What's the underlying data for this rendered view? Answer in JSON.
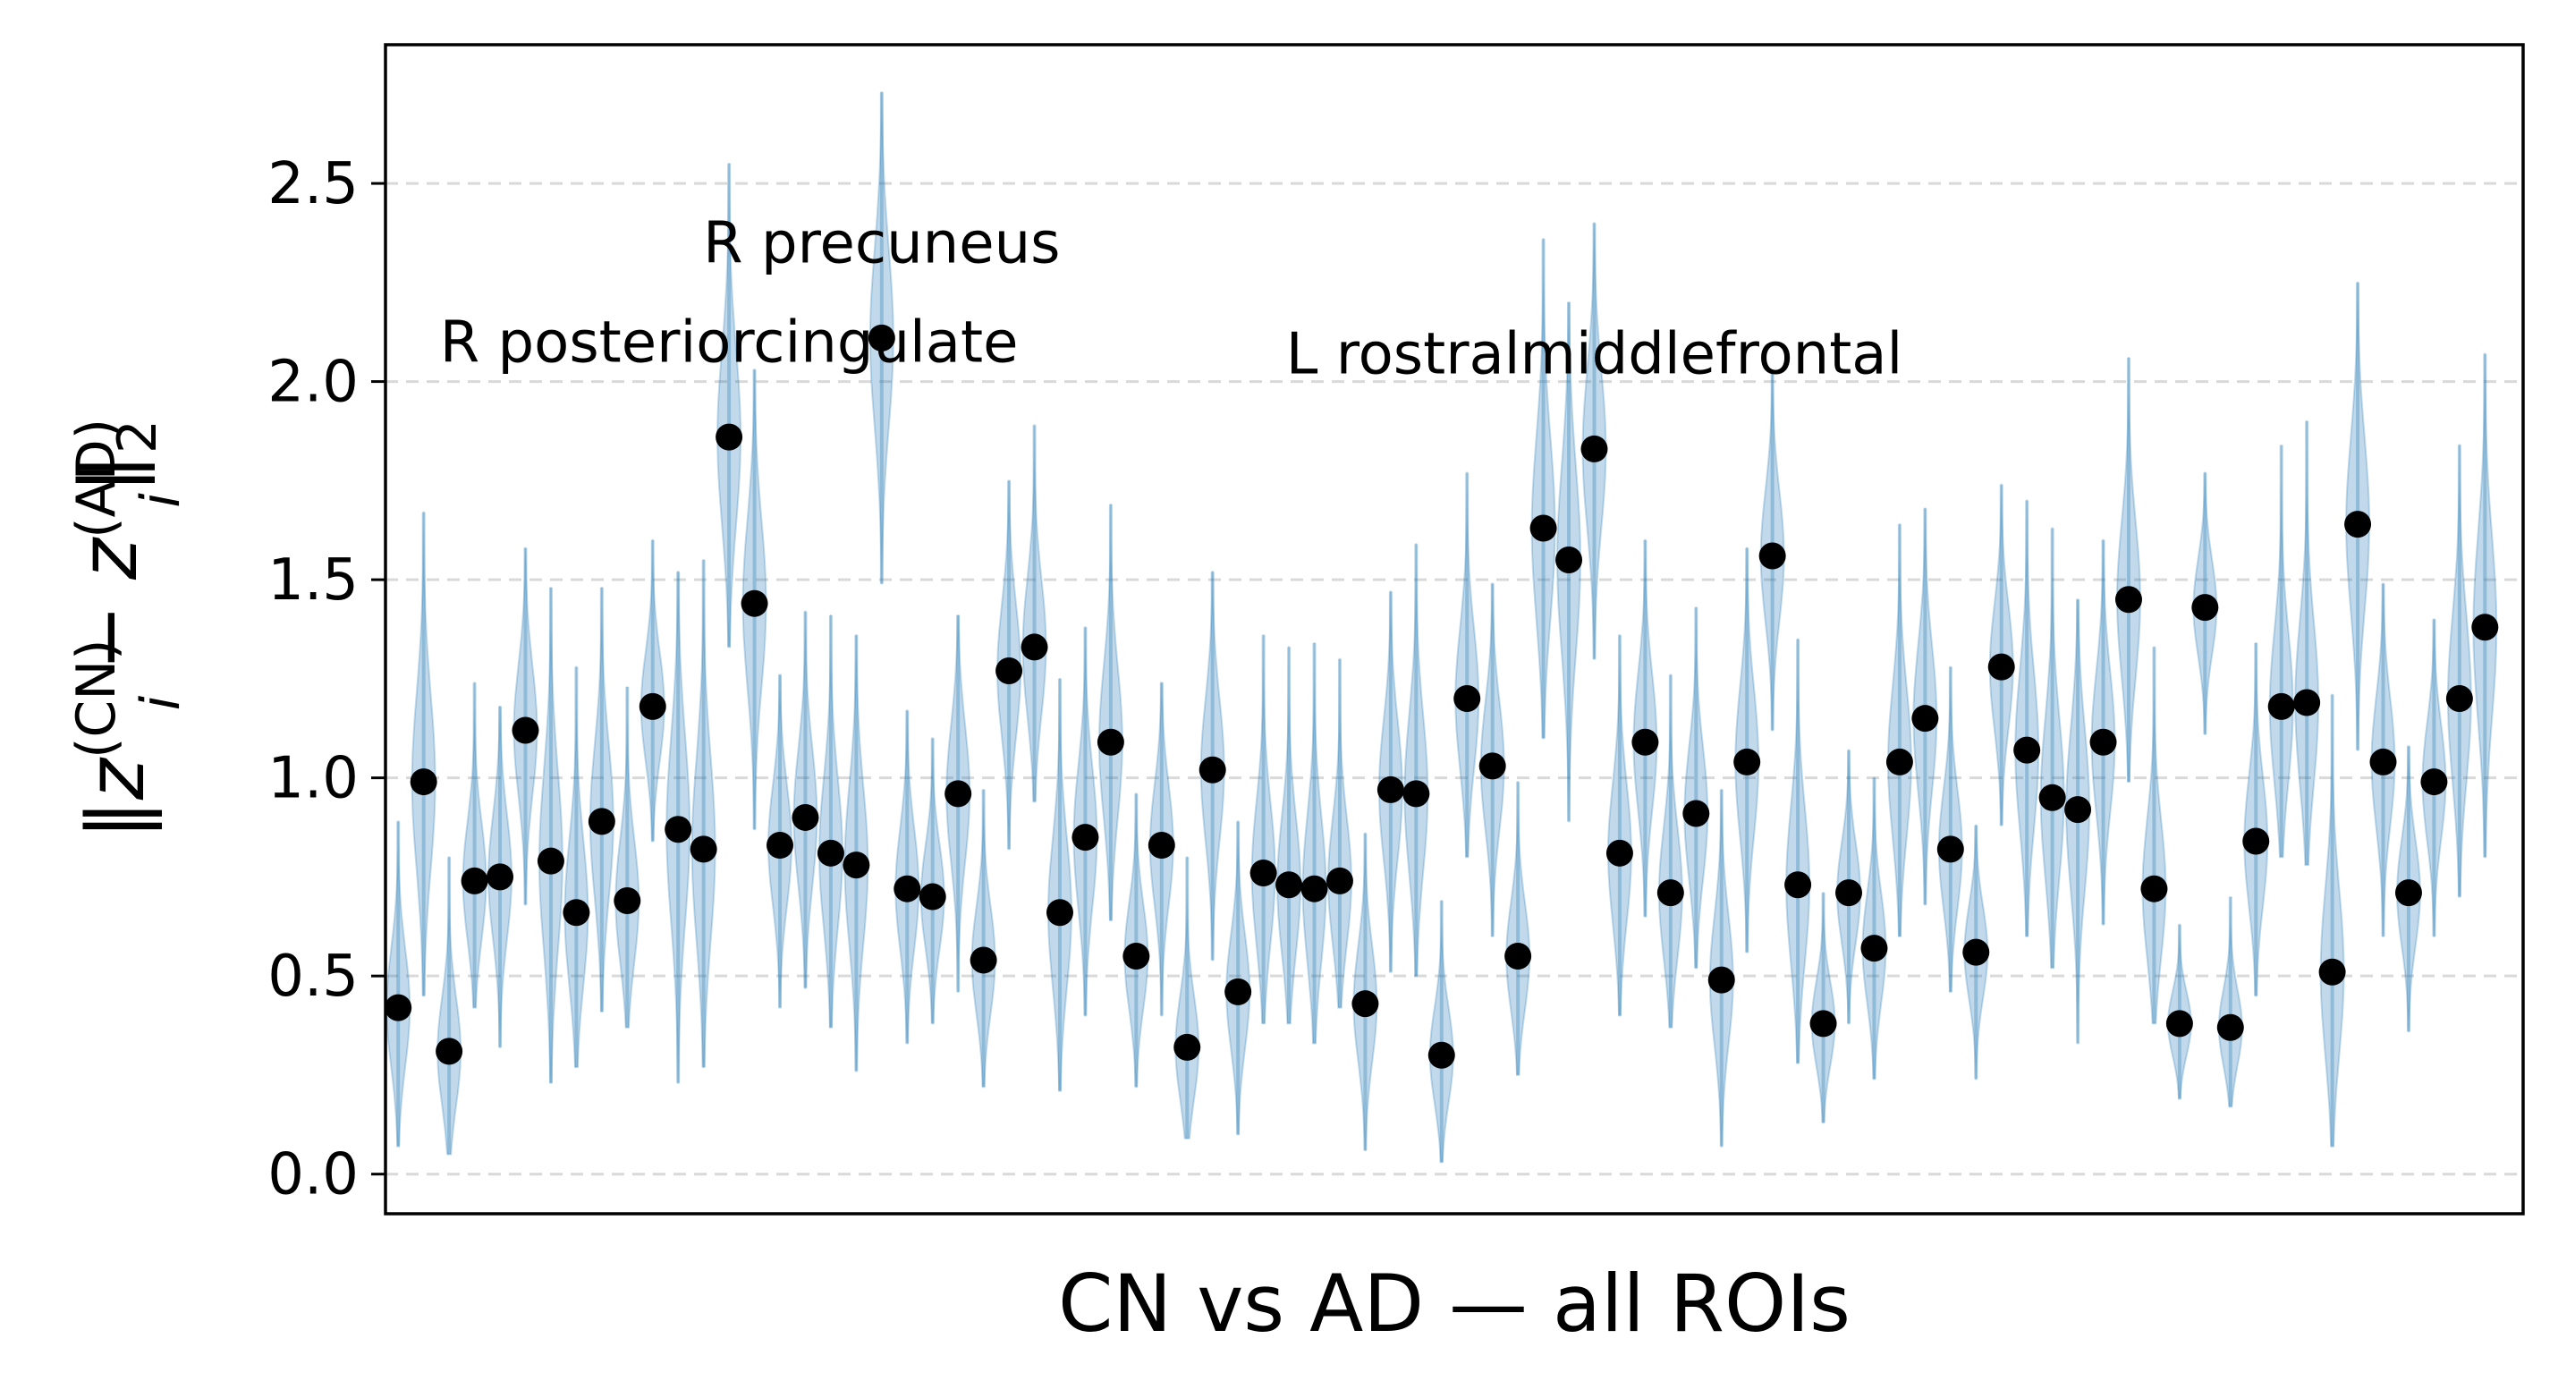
{
  "chart_data": {
    "type": "scatter",
    "title": "",
    "xlabel": "CN vs AD — all ROIs",
    "ylabel_parts": [
      "‖z",
      "(CN)",
      "i",
      " − z",
      "(AD)",
      "i",
      "‖",
      "2"
    ],
    "ylim": [
      -0.1,
      2.85
    ],
    "xlim": [
      0.5,
      84.5
    ],
    "yticks": [
      0.0,
      0.5,
      1.0,
      1.5,
      2.0,
      2.5
    ],
    "ytick_labels": [
      "0.0",
      "0.5",
      "1.0",
      "1.5",
      "2.0",
      "2.5"
    ],
    "grid": "horizontal-dashed",
    "colors": {
      "violin": "#1f77b4",
      "point": "#000000",
      "grid": "#d9d9d9"
    },
    "series": [
      {
        "values": [
          0.42,
          0.99,
          0.31,
          0.74,
          0.75,
          1.12,
          0.79,
          0.66,
          0.89,
          0.69,
          1.18,
          0.87,
          0.82,
          1.86,
          1.44,
          0.83,
          0.9,
          0.81,
          0.78,
          2.11,
          0.72,
          0.7,
          0.96,
          0.54,
          1.27,
          1.33,
          0.66,
          0.85,
          1.09,
          0.55,
          0.83,
          0.32,
          1.02,
          0.46,
          0.76,
          0.73,
          0.72,
          0.74,
          0.43,
          0.97,
          0.96,
          0.3,
          1.2,
          1.03,
          0.55,
          1.63,
          1.55,
          1.83,
          0.81,
          1.09,
          0.71,
          0.91,
          0.49,
          1.04,
          1.56,
          0.73,
          0.38,
          0.71,
          0.57,
          1.04,
          1.15,
          0.82,
          0.56,
          1.28,
          1.07,
          0.95,
          0.92,
          1.09,
          1.45,
          0.72,
          0.38,
          1.43,
          0.37,
          0.84,
          1.18,
          1.19,
          0.51,
          1.64,
          1.04,
          0.71,
          0.99,
          1.2,
          1.38
        ],
        "lower": [
          0.07,
          0.45,
          0.05,
          0.42,
          0.32,
          0.68,
          0.23,
          0.27,
          0.41,
          0.37,
          0.84,
          0.23,
          0.27,
          1.33,
          0.87,
          0.42,
          0.47,
          0.37,
          0.26,
          1.49,
          0.33,
          0.38,
          0.46,
          0.22,
          0.82,
          0.94,
          0.21,
          0.4,
          0.64,
          0.22,
          0.4,
          0.09,
          0.54,
          0.1,
          0.38,
          0.38,
          0.33,
          0.42,
          0.06,
          0.51,
          0.5,
          0.03,
          0.8,
          0.6,
          0.25,
          1.1,
          0.89,
          1.3,
          0.4,
          0.65,
          0.37,
          0.52,
          0.07,
          0.56,
          1.12,
          0.28,
          0.13,
          0.38,
          0.24,
          0.6,
          0.68,
          0.46,
          0.24,
          0.88,
          0.6,
          0.52,
          0.33,
          0.63,
          0.99,
          0.38,
          0.19,
          1.11,
          0.17,
          0.45,
          0.8,
          0.78,
          0.07,
          1.07,
          0.6,
          0.36,
          0.6,
          0.7,
          0.8
        ],
        "upper": [
          0.89,
          1.67,
          0.8,
          1.24,
          1.18,
          1.58,
          1.48,
          1.28,
          1.48,
          1.23,
          1.6,
          1.52,
          1.55,
          2.55,
          2.03,
          1.26,
          1.42,
          1.41,
          1.36,
          2.73,
          1.17,
          1.1,
          1.41,
          0.97,
          1.75,
          1.89,
          1.25,
          1.38,
          1.69,
          0.96,
          1.24,
          0.8,
          1.52,
          0.89,
          1.36,
          1.33,
          1.34,
          1.3,
          0.86,
          1.47,
          1.59,
          0.69,
          1.77,
          1.49,
          0.99,
          2.36,
          2.2,
          2.4,
          1.36,
          1.6,
          1.26,
          1.43,
          0.97,
          1.58,
          2.02,
          1.35,
          0.71,
          1.07,
          1.0,
          1.64,
          1.68,
          1.28,
          0.88,
          1.74,
          1.7,
          1.63,
          1.45,
          1.6,
          2.06,
          1.33,
          0.63,
          1.77,
          0.7,
          1.34,
          1.84,
          1.9,
          1.21,
          2.25,
          1.49,
          1.08,
          1.4,
          1.84,
          2.07
        ]
      }
    ],
    "annotations": [
      {
        "text": "R posteriorcingulate",
        "x": 14,
        "y": 1.86
      },
      {
        "text": "R precuneus",
        "x": 20,
        "y": 2.11
      },
      {
        "text": "L rostralmiddlefrontal",
        "x": 48,
        "y": 1.83
      }
    ]
  }
}
